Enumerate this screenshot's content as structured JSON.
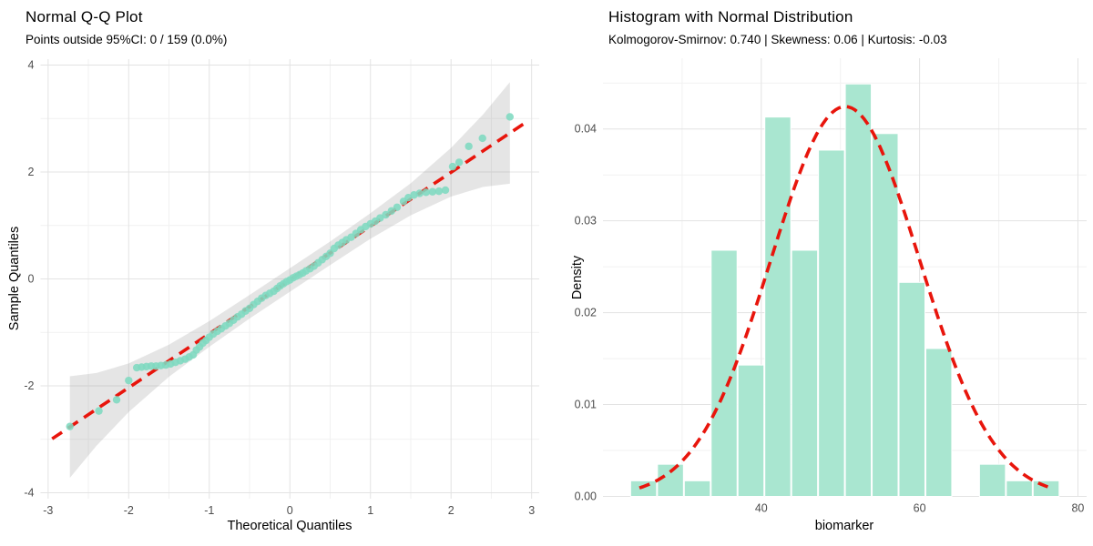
{
  "chart_data": [
    {
      "type": "scatter",
      "subtype": "qq-plot",
      "title": "Normal Q-Q Plot",
      "subtitle": "Points outside 95%CI: 0 / 159 (0.0%)",
      "xlabel": "Theoretical Quantiles",
      "ylabel": "Sample Quantiles",
      "n": 159,
      "xlim": [
        -3.094,
        3.094
      ],
      "ylim": [
        -4.11,
        4.11
      ],
      "xticks": {
        "values": [
          -3,
          -2,
          -1,
          0,
          1,
          2,
          3
        ],
        "labels": [
          "-3",
          "-2",
          "-1",
          "0",
          "1",
          "2",
          "3"
        ]
      },
      "yticks": {
        "values": [
          -4,
          -2,
          0,
          2,
          4
        ],
        "labels": [
          "-4",
          "-2",
          "0",
          "2",
          "4"
        ]
      },
      "xminor": [
        -2.5,
        -1.5,
        -0.5,
        0.5,
        1.5,
        2.5
      ],
      "yminor": [
        -3,
        -1,
        1,
        3
      ],
      "grid": true,
      "legend": "none",
      "point_color": "#7EDAC0",
      "line_color": "#E8150C",
      "band_color": "#999999",
      "reference_line": {
        "x1": -2.95,
        "y1": -2.99,
        "x2": 2.95,
        "y2": 2.95,
        "style": "dashed"
      },
      "confidence_band": [
        [
          -2.73,
          -3.72,
          -1.82
        ],
        [
          -2.4,
          -3.12,
          -1.76
        ],
        [
          -2.0,
          -2.49,
          -1.58
        ],
        [
          -1.5,
          -1.83,
          -1.23
        ],
        [
          -1.0,
          -1.27,
          -0.79
        ],
        [
          -0.5,
          -0.74,
          -0.3
        ],
        [
          0.0,
          -0.24,
          0.2
        ],
        [
          0.5,
          0.26,
          0.7
        ],
        [
          1.0,
          0.75,
          1.23
        ],
        [
          1.5,
          1.19,
          1.79
        ],
        [
          2.0,
          1.54,
          2.45
        ],
        [
          2.4,
          1.72,
          3.08
        ],
        [
          2.73,
          1.78,
          3.68
        ]
      ],
      "points": [
        [
          -2.73,
          -2.76
        ],
        [
          -2.37,
          -2.47
        ],
        [
          -2.15,
          -2.26
        ],
        [
          -2.0,
          -1.9
        ],
        [
          -1.9,
          -1.66
        ],
        [
          -1.84,
          -1.65
        ],
        [
          -1.78,
          -1.64
        ],
        [
          -1.72,
          -1.63
        ],
        [
          -1.66,
          -1.63
        ],
        [
          -1.6,
          -1.62
        ],
        [
          -1.54,
          -1.61
        ],
        [
          -1.48,
          -1.59
        ],
        [
          -1.42,
          -1.56
        ],
        [
          -1.36,
          -1.53
        ],
        [
          -1.3,
          -1.5
        ],
        [
          -1.25,
          -1.46
        ],
        [
          -1.2,
          -1.42
        ],
        [
          -1.16,
          -1.33
        ],
        [
          -1.12,
          -1.27
        ],
        [
          -1.08,
          -1.2
        ],
        [
          -1.04,
          -1.15
        ],
        [
          -1.0,
          -1.09
        ],
        [
          -0.95,
          -1.03
        ],
        [
          -0.9,
          -0.98
        ],
        [
          -0.85,
          -0.93
        ],
        [
          -0.8,
          -0.88
        ],
        [
          -0.75,
          -0.83
        ],
        [
          -0.7,
          -0.77
        ],
        [
          -0.65,
          -0.71
        ],
        [
          -0.6,
          -0.66
        ],
        [
          -0.55,
          -0.6
        ],
        [
          -0.5,
          -0.55
        ],
        [
          -0.45,
          -0.48
        ],
        [
          -0.4,
          -0.42
        ],
        [
          -0.35,
          -0.36
        ],
        [
          -0.3,
          -0.31
        ],
        [
          -0.25,
          -0.27
        ],
        [
          -0.2,
          -0.23
        ],
        [
          -0.16,
          -0.18
        ],
        [
          -0.12,
          -0.13
        ],
        [
          -0.08,
          -0.09
        ],
        [
          -0.04,
          -0.05
        ],
        [
          0.0,
          -0.02
        ],
        [
          0.04,
          0.02
        ],
        [
          0.08,
          0.05
        ],
        [
          0.12,
          0.08
        ],
        [
          0.16,
          0.11
        ],
        [
          0.2,
          0.15
        ],
        [
          0.25,
          0.19
        ],
        [
          0.3,
          0.24
        ],
        [
          0.35,
          0.3
        ],
        [
          0.4,
          0.36
        ],
        [
          0.45,
          0.42
        ],
        [
          0.5,
          0.48
        ],
        [
          0.55,
          0.57
        ],
        [
          0.6,
          0.63
        ],
        [
          0.65,
          0.68
        ],
        [
          0.7,
          0.73
        ],
        [
          0.76,
          0.78
        ],
        [
          0.82,
          0.85
        ],
        [
          0.88,
          0.92
        ],
        [
          0.94,
          0.98
        ],
        [
          1.0,
          1.03
        ],
        [
          1.06,
          1.08
        ],
        [
          1.12,
          1.14
        ],
        [
          1.19,
          1.2
        ],
        [
          1.26,
          1.27
        ],
        [
          1.33,
          1.34
        ],
        [
          1.41,
          1.45
        ],
        [
          1.47,
          1.52
        ],
        [
          1.54,
          1.57
        ],
        [
          1.61,
          1.6
        ],
        [
          1.69,
          1.62
        ],
        [
          1.77,
          1.63
        ],
        [
          1.85,
          1.64
        ],
        [
          1.93,
          1.66
        ],
        [
          2.02,
          2.1
        ],
        [
          2.1,
          2.18
        ],
        [
          2.22,
          2.48
        ],
        [
          2.39,
          2.63
        ],
        [
          2.73,
          3.03
        ]
      ]
    },
    {
      "type": "bar",
      "subtype": "histogram-density",
      "title": "Histogram with Normal Distribution",
      "subtitle": "Kolmogorov-Smirnov: 0.740 | Skewness: 0.06 | Kurtosis: -0.03",
      "xlabel": "biomarker",
      "ylabel": "Density",
      "xlim": [
        20.0,
        81.1
      ],
      "ylim": [
        0,
        0.0477
      ],
      "xticks": {
        "values": [
          40,
          60,
          80
        ],
        "labels": [
          "40",
          "60",
          "80"
        ]
      },
      "yticks": {
        "values": [
          0,
          0.01,
          0.02,
          0.03,
          0.04
        ],
        "labels": [
          "0.00",
          "0.01",
          "0.02",
          "0.03",
          "0.04"
        ]
      },
      "xminor": [
        30,
        50,
        70
      ],
      "yminor": [
        0.005,
        0.015,
        0.025,
        0.035,
        0.045
      ],
      "grid": true,
      "legend": "none",
      "bar_color": "#A9E6D0",
      "bar_edge_color": "#FFFFFF",
      "curve_color": "#E8150C",
      "bin_width": 3.39,
      "bins": [
        {
          "x0": 23.44,
          "x1": 26.83,
          "density": 0.0017
        },
        {
          "x0": 26.83,
          "x1": 30.22,
          "density": 0.0035
        },
        {
          "x0": 30.22,
          "x1": 33.61,
          "density": 0.0017
        },
        {
          "x0": 33.61,
          "x1": 37.0,
          "density": 0.0268
        },
        {
          "x0": 37.0,
          "x1": 40.39,
          "density": 0.0143
        },
        {
          "x0": 40.39,
          "x1": 43.78,
          "density": 0.0413
        },
        {
          "x0": 43.78,
          "x1": 47.17,
          "density": 0.0268
        },
        {
          "x0": 47.17,
          "x1": 50.56,
          "density": 0.0377
        },
        {
          "x0": 50.56,
          "x1": 53.95,
          "density": 0.0449
        },
        {
          "x0": 53.95,
          "x1": 57.34,
          "density": 0.0395
        },
        {
          "x0": 57.34,
          "x1": 60.73,
          "density": 0.0233
        },
        {
          "x0": 60.73,
          "x1": 64.12,
          "density": 0.0161
        },
        {
          "x0": 64.12,
          "x1": 67.51,
          "density": 0.0
        },
        {
          "x0": 67.51,
          "x1": 70.9,
          "density": 0.0035
        },
        {
          "x0": 70.9,
          "x1": 74.29,
          "density": 0.0017
        },
        {
          "x0": 74.29,
          "x1": 77.68,
          "density": 0.0017
        }
      ],
      "normal_curve": {
        "mean": 50.6,
        "sd": 9.4,
        "x_start": 24.6,
        "x_end": 76.6,
        "style": "dashed"
      }
    }
  ],
  "style": {
    "background": "#FFFFFF",
    "grid_major": "#E3E3E3",
    "grid_minor": "#F1F1F1",
    "tick_text": "#4D4D4D",
    "title_text": "#000000"
  }
}
